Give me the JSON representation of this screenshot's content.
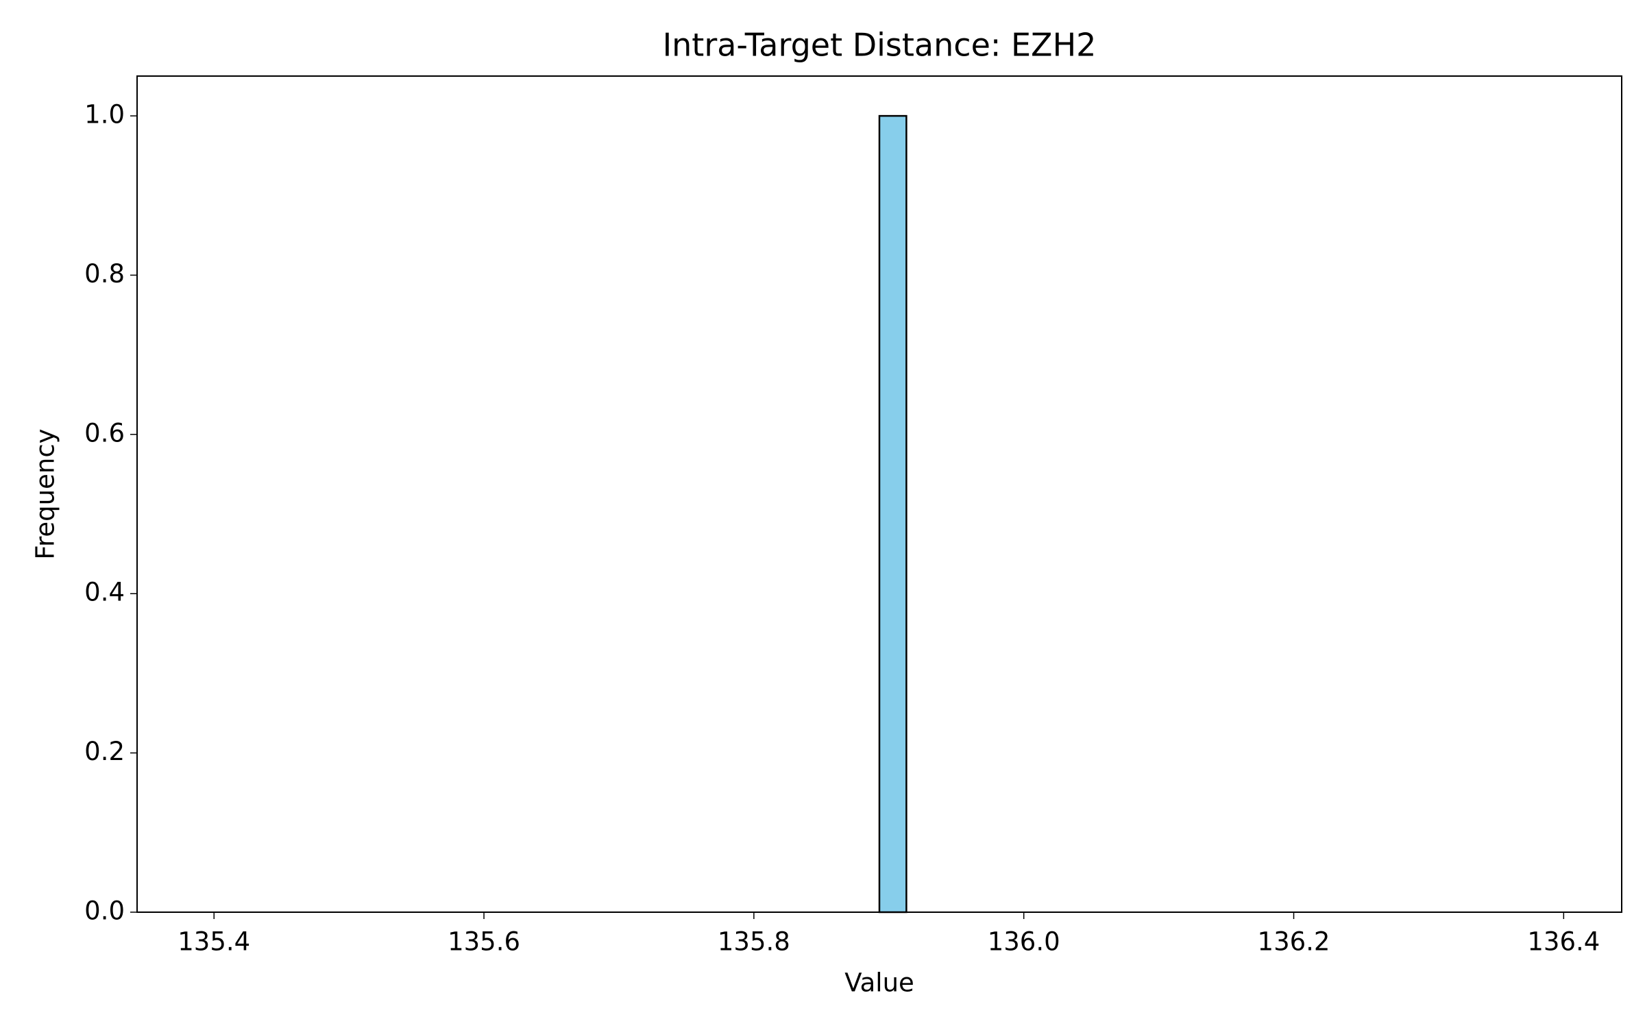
{
  "chart_data": {
    "type": "histogram",
    "title": "Intra-Target Distance: EZH2",
    "x_label": "Value",
    "y_label": "Frequency",
    "bins": [
      135.393,
      135.413,
      135.433,
      135.453,
      135.473,
      135.493,
      135.513,
      135.533,
      135.553,
      135.573,
      135.593,
      135.613,
      135.633,
      135.653,
      135.673,
      135.693,
      135.713,
      135.733,
      135.753,
      135.773,
      135.793,
      135.813,
      135.833,
      135.853,
      135.873,
      135.893,
      135.913,
      135.933,
      135.953,
      135.973,
      135.993,
      136.013,
      136.033,
      136.053,
      136.073,
      136.093,
      136.113,
      136.133,
      136.153,
      136.173,
      136.193,
      136.213,
      136.233,
      136.253,
      136.273,
      136.293,
      136.313,
      136.333,
      136.353,
      136.373,
      136.393
    ],
    "values": [
      0,
      0,
      0,
      0,
      0,
      0,
      0,
      0,
      0,
      0,
      0,
      0,
      0,
      0,
      0,
      0,
      0,
      0,
      0,
      0,
      0,
      0,
      0,
      0,
      0,
      1,
      0,
      0,
      0,
      0,
      0,
      0,
      0,
      0,
      0,
      0,
      0,
      0,
      0,
      0,
      0,
      0,
      0,
      0,
      0,
      0,
      0,
      0,
      0,
      0
    ],
    "color": "#87ceeb",
    "edgecolor": "#000000",
    "xlim": [
      135.343,
      136.443
    ],
    "xticks": [
      135.4,
      135.6,
      135.8,
      {
        "value": 136,
        "label": "136.0"
      },
      136.2,
      136.4
    ],
    "ylim": [
      0,
      1.05
    ],
    "yticks": [
      {
        "value": 0,
        "label": "0.0"
      },
      0.2,
      0.4,
      0.6,
      0.8,
      {
        "value": 1,
        "label": "1.0"
      }
    ],
    "grid": false
  }
}
